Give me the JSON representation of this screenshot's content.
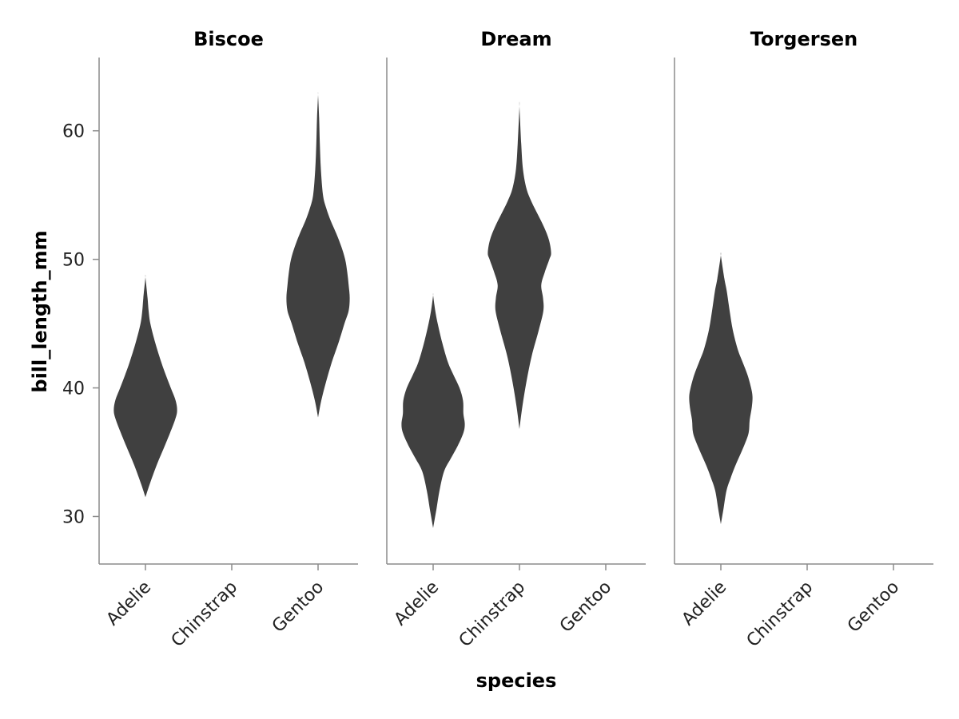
{
  "chart_data": {
    "type": "violin",
    "xlabel": "species",
    "ylabel": "bill_length_mm",
    "ylim": [
      26.3,
      65.7
    ],
    "yticks": [
      30,
      40,
      50,
      60
    ],
    "categories": [
      "Adelie",
      "Chinstrap",
      "Gentoo"
    ],
    "grid": false,
    "panels": [
      {
        "title": "Biscoe",
        "violins": [
          {
            "category": "Adelie",
            "profile": [
              [
                31.5,
                0
              ],
              [
                32.5,
                1.2
              ],
              [
                34,
                3.2
              ],
              [
                35.5,
                5.5
              ],
              [
                36.5,
                7
              ],
              [
                37.5,
                8.4
              ],
              [
                38.2,
                9
              ],
              [
                39,
                8.6
              ],
              [
                40,
                7.2
              ],
              [
                41,
                5.8
              ],
              [
                42,
                4.5
              ],
              [
                43.5,
                2.8
              ],
              [
                45,
                1.4
              ],
              [
                46,
                0.9
              ],
              [
                47,
                0.6
              ],
              [
                48.6,
                0
              ]
            ]
          },
          {
            "category": "Gentoo",
            "profile": [
              [
                37.7,
                0
              ],
              [
                39,
                0.9
              ],
              [
                40.5,
                2.3
              ],
              [
                42,
                3.9
              ],
              [
                43.5,
                5.8
              ],
              [
                45,
                7.5
              ],
              [
                46,
                8.7
              ],
              [
                47,
                9
              ],
              [
                48,
                8.7
              ],
              [
                49,
                8.3
              ],
              [
                50,
                7.7
              ],
              [
                51,
                6.6
              ],
              [
                52,
                5.2
              ],
              [
                53,
                3.6
              ],
              [
                54,
                2.3
              ],
              [
                55,
                1.4
              ],
              [
                57,
                0.8
              ],
              [
                59,
                0.5
              ],
              [
                61,
                0.3
              ],
              [
                62.8,
                0
              ]
            ]
          }
        ]
      },
      {
        "title": "Dream",
        "violins": [
          {
            "category": "Adelie",
            "profile": [
              [
                29.1,
                0
              ],
              [
                30.5,
                0.9
              ],
              [
                32,
                1.8
              ],
              [
                33.5,
                3.1
              ],
              [
                34.5,
                5
              ],
              [
                35.5,
                7
              ],
              [
                36.5,
                8.6
              ],
              [
                37.2,
                9
              ],
              [
                38,
                8.6
              ],
              [
                39,
                8.5
              ],
              [
                40,
                7.5
              ],
              [
                41,
                5.8
              ],
              [
                42,
                4.2
              ],
              [
                43.5,
                2.6
              ],
              [
                45,
                1.3
              ],
              [
                46,
                0.6
              ],
              [
                47.2,
                0
              ]
            ]
          },
          {
            "category": "Chinstrap",
            "profile": [
              [
                36.8,
                0
              ],
              [
                38.5,
                0.8
              ],
              [
                40.5,
                2
              ],
              [
                42.5,
                3.5
              ],
              [
                44.5,
                5.5
              ],
              [
                46,
                6.8
              ],
              [
                47,
                6.7
              ],
              [
                48,
                6.2
              ],
              [
                49,
                7.2
              ],
              [
                50,
                8.5
              ],
              [
                50.5,
                9
              ],
              [
                51.5,
                8.4
              ],
              [
                52.5,
                7
              ],
              [
                53.5,
                5.2
              ],
              [
                54.5,
                3.4
              ],
              [
                55.5,
                2
              ],
              [
                57,
                1
              ],
              [
                59,
                0.5
              ],
              [
                61.9,
                0
              ]
            ]
          }
        ]
      },
      {
        "title": "Torgersen",
        "violins": [
          {
            "category": "Adelie",
            "profile": [
              [
                29.4,
                0
              ],
              [
                30.5,
                0.7
              ],
              [
                32,
                1.6
              ],
              [
                33,
                2.8
              ],
              [
                34,
                4.2
              ],
              [
                35.5,
                6.6
              ],
              [
                36.5,
                7.9
              ],
              [
                37.5,
                8.2
              ],
              [
                38.5,
                8.8
              ],
              [
                39.3,
                9
              ],
              [
                40,
                8.6
              ],
              [
                41,
                7.6
              ],
              [
                42,
                6.2
              ],
              [
                43,
                4.8
              ],
              [
                44.5,
                3.4
              ],
              [
                46,
                2.5
              ],
              [
                47.5,
                1.7
              ],
              [
                48.5,
                1
              ],
              [
                50.3,
                0
              ]
            ]
          }
        ]
      }
    ]
  }
}
